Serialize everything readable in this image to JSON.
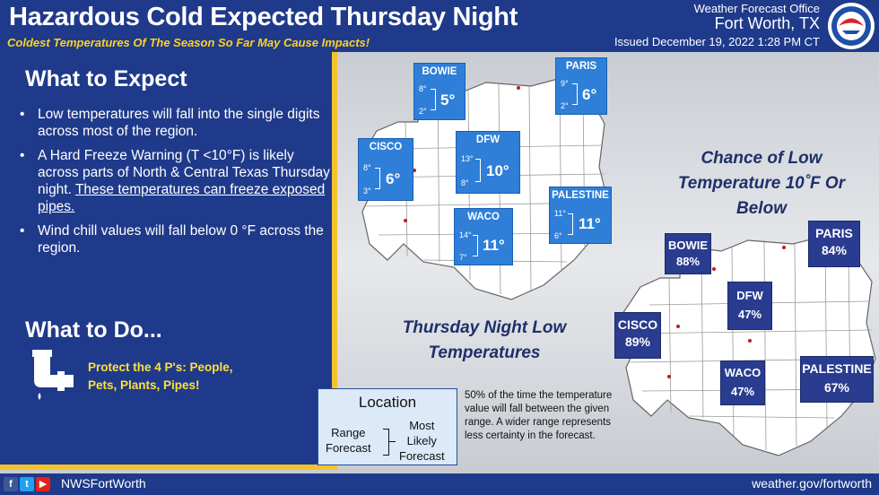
{
  "header": {
    "title": "Hazardous Cold Expected Thursday Night",
    "subtitle": "Coldest Temperatures Of The Season So Far May Cause Impacts!",
    "office": "Weather Forecast Office",
    "city": "Fort Worth, TX",
    "issued": "Issued December 19, 2022 1:28 PM CT"
  },
  "expect": {
    "heading": "What to Expect",
    "bullets": [
      "Low temperatures will fall into the single digits across most of the region.",
      "A Hard Freeze Warning (T <10°F) is likely across parts of North & Central Texas Thursday night.",
      "These temperatures can freeze exposed pipes.",
      "Wind chill values will fall below 0 °F across the region."
    ]
  },
  "todo": {
    "heading": "What to Do...",
    "line1": "Protect the 4 P's: People,",
    "line2": "Pets, Plants, Pipes!"
  },
  "low_map": {
    "label_line1": "Thursday Night Low",
    "label_line2": "Temperatures",
    "cities": [
      {
        "name": "BOWIE",
        "high": "8°",
        "low": "2°",
        "value": "5°"
      },
      {
        "name": "PARIS",
        "high": "9°",
        "low": "2°",
        "value": "6°"
      },
      {
        "name": "CISCO",
        "high": "8°",
        "low": "3°",
        "value": "6°"
      },
      {
        "name": "DFW",
        "high": "13°",
        "low": "8°",
        "value": "10°"
      },
      {
        "name": "PALESTINE",
        "high": "11°",
        "low": "6°",
        "value": "11°"
      },
      {
        "name": "WACO",
        "high": "14°",
        "low": "7°",
        "value": "11°"
      }
    ]
  },
  "chance_map": {
    "label_line1": "Chance of Low",
    "label_line2": "Temperature 10˚F Or",
    "label_line3": "Below",
    "cities": [
      {
        "name": "BOWIE",
        "value": "88%"
      },
      {
        "name": "PARIS",
        "value": "84%"
      },
      {
        "name": "DFW",
        "value": "47%"
      },
      {
        "name": "CISCO",
        "value": "89%"
      },
      {
        "name": "WACO",
        "value": "47%"
      },
      {
        "name": "PALESTINE",
        "value": "67%"
      }
    ]
  },
  "legend": {
    "title": "Location",
    "range1": "Range",
    "range2": "Forecast",
    "most1": "Most",
    "most2": "Likely",
    "most3": "Forecast",
    "note": "50% of the time the temperature value will fall between the given range. A wider range represents less certainty in the forecast."
  },
  "footer": {
    "handle": "NWSFortWorth",
    "site": "weather.gov/fortworth"
  },
  "colors": {
    "navy": "#1f3a8a",
    "yellow": "#f4c22b",
    "box_blue": "#2f7fd8",
    "pct_navy": "#2a3c8f"
  }
}
